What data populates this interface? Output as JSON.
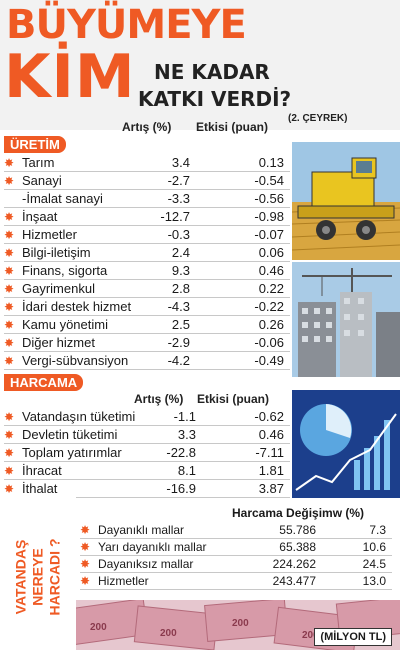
{
  "title": {
    "line1": "BÜYÜMEYE",
    "line2": "KİM",
    "line3": "NE KADAR",
    "line4": "KATKI VERDİ?",
    "quarter": "(2. ÇEYREK)"
  },
  "columns": {
    "increase": "Artış (%)",
    "effect": "Etkisi (puan)"
  },
  "production": {
    "label": "ÜRETİM",
    "rows": [
      {
        "label": "Tarım",
        "increase": "3.4",
        "effect": "0.13",
        "star": true
      },
      {
        "label": "Sanayi",
        "increase": "-2.7",
        "effect": "-0.54",
        "star": true
      },
      {
        "label": "-İmalat sanayi",
        "increase": "-3.3",
        "effect": "-0.56",
        "star": false
      },
      {
        "label": "İnşaat",
        "increase": "-12.7",
        "effect": "-0.98",
        "star": true
      },
      {
        "label": "Hizmetler",
        "increase": "-0.3",
        "effect": "-0.07",
        "star": true
      },
      {
        "label": "Bilgi-iletişim",
        "increase": "2.4",
        "effect": "0.06",
        "star": true
      },
      {
        "label": "Finans, sigorta",
        "increase": "9.3",
        "effect": "0.46",
        "star": true
      },
      {
        "label": "Gayrimenkul",
        "increase": "2.8",
        "effect": "0.22",
        "star": true
      },
      {
        "label": "İdari destek hizmet",
        "increase": "-4.3",
        "effect": "-0.22",
        "star": true
      },
      {
        "label": "Kamu yönetimi",
        "increase": "2.5",
        "effect": "0.26",
        "star": true
      },
      {
        "label": "Diğer hizmet",
        "increase": "-2.9",
        "effect": "-0.06",
        "star": true
      },
      {
        "label": "Vergi-sübvansiyon",
        "increase": "-4.2",
        "effect": "-0.49",
        "star": true
      }
    ]
  },
  "spending": {
    "label": "HARCAMA",
    "rows": [
      {
        "label": "Vatandaşın tüketimi",
        "increase": "-1.1",
        "effect": "-0.62"
      },
      {
        "label": "Devletin tüketimi",
        "increase": "3.3",
        "effect": "0.46"
      },
      {
        "label": "Toplam yatırımlar",
        "increase": "-22.8",
        "effect": "-7.11"
      },
      {
        "label": "İhracat",
        "increase": "8.1",
        "effect": "1.81"
      },
      {
        "label": "İthalat",
        "increase": "-16.9",
        "effect": "3.87"
      }
    ]
  },
  "citizen": {
    "side_label_1": "VATANDAŞ",
    "side_label_2": "NEREYE",
    "side_label_3": "HARCADI ?",
    "header": "Harcama Değişimw (%)",
    "rows": [
      {
        "label": "Dayanıklı mallar",
        "amount": "55.786",
        "change": "7.3"
      },
      {
        "label": "Yarı dayanıklı mallar",
        "amount": "65.388",
        "change": "10.6"
      },
      {
        "label": "Dayanıksız mallar",
        "amount": "224.262",
        "change": "24.5"
      },
      {
        "label": "Hizmetler",
        "amount": "243.477",
        "change": "13.0"
      }
    ],
    "unit": "(MİLYON TL)"
  },
  "colors": {
    "accent": "#ef5a24"
  }
}
